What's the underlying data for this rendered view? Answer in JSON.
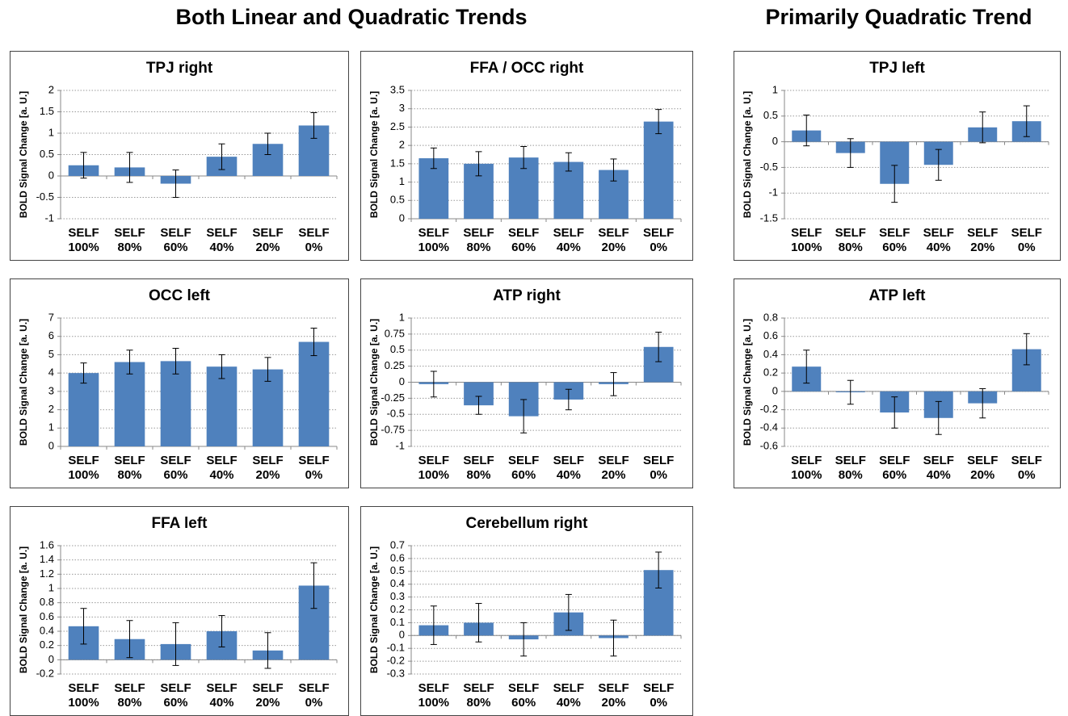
{
  "headings": [
    "Both Linear and Quadratic Trends",
    "Primarily Quadratic Trend"
  ],
  "chart_data": [
    {
      "type": "bar",
      "title": "TPJ right",
      "ylabel": "BOLD Signal Change [a. U.]",
      "categories": [
        "SELF 100%",
        "SELF 80%",
        "SELF 60%",
        "SELF 40%",
        "SELF 20%",
        "SELF 0%"
      ],
      "values": [
        0.25,
        0.2,
        -0.18,
        0.45,
        0.75,
        1.18
      ],
      "errors": [
        0.3,
        0.35,
        0.32,
        0.3,
        0.25,
        0.3
      ],
      "color": "#4f81bd",
      "ylim": [
        -1,
        2
      ],
      "yticks": [
        -1,
        -0.5,
        0,
        0.5,
        1,
        1.5,
        2
      ],
      "grid": true
    },
    {
      "type": "bar",
      "title": "FFA / OCC right",
      "ylabel": "BOLD Signal Change [a. U.]",
      "categories": [
        "SELF 100%",
        "SELF 80%",
        "SELF 60%",
        "SELF 40%",
        "SELF 20%",
        "SELF 0%"
      ],
      "values": [
        1.65,
        1.5,
        1.67,
        1.55,
        1.33,
        2.65
      ],
      "errors": [
        0.28,
        0.33,
        0.3,
        0.25,
        0.3,
        0.33
      ],
      "color": "#4f81bd",
      "ylim": [
        0,
        3.5
      ],
      "yticks": [
        0,
        0.5,
        1,
        1.5,
        2,
        2.5,
        3,
        3.5
      ],
      "grid": true
    },
    {
      "type": "bar",
      "title": "TPJ left",
      "ylabel": "BOLD Signal Change [a. U.]",
      "categories": [
        "SELF 100%",
        "SELF 80%",
        "SELF 60%",
        "SELF 40%",
        "SELF 20%",
        "SELF 0%"
      ],
      "values": [
        0.22,
        -0.22,
        -0.82,
        -0.45,
        0.28,
        0.4
      ],
      "errors": [
        0.3,
        0.28,
        0.36,
        0.3,
        0.3,
        0.3
      ],
      "color": "#4f81bd",
      "ylim": [
        -1.5,
        1
      ],
      "yticks": [
        -1.5,
        -1,
        -0.5,
        0,
        0.5,
        1
      ],
      "grid": true
    },
    {
      "type": "bar",
      "title": "OCC left",
      "ylabel": "BOLD Signal Change [a. U.]",
      "categories": [
        "SELF 100%",
        "SELF 80%",
        "SELF 60%",
        "SELF 40%",
        "SELF 20%",
        "SELF 0%"
      ],
      "values": [
        4.0,
        4.6,
        4.65,
        4.35,
        4.2,
        5.7
      ],
      "errors": [
        0.55,
        0.65,
        0.7,
        0.65,
        0.65,
        0.75
      ],
      "color": "#4f81bd",
      "ylim": [
        0,
        7
      ],
      "yticks": [
        0,
        1,
        2,
        3,
        4,
        5,
        6,
        7
      ],
      "grid": true
    },
    {
      "type": "bar",
      "title": "ATP right",
      "ylabel": "BOLD Signal Change [a. U.]",
      "categories": [
        "SELF 100%",
        "SELF 80%",
        "SELF 60%",
        "SELF 40%",
        "SELF 20%",
        "SELF 0%"
      ],
      "values": [
        -0.03,
        -0.36,
        -0.53,
        -0.27,
        -0.03,
        0.55
      ],
      "errors": [
        0.2,
        0.14,
        0.26,
        0.16,
        0.18,
        0.23
      ],
      "color": "#4f81bd",
      "ylim": [
        -1,
        1
      ],
      "yticks": [
        -1,
        -0.75,
        -0.5,
        -0.25,
        0,
        0.25,
        0.5,
        0.75,
        1
      ],
      "grid": true
    },
    {
      "type": "bar",
      "title": "ATP left",
      "ylabel": "BOLD Signal Change [a. U.]",
      "categories": [
        "SELF 100%",
        "SELF 80%",
        "SELF 60%",
        "SELF 40%",
        "SELF 20%",
        "SELF 0%"
      ],
      "values": [
        0.27,
        -0.01,
        -0.23,
        -0.29,
        -0.13,
        0.46
      ],
      "errors": [
        0.18,
        0.13,
        0.17,
        0.18,
        0.16,
        0.17
      ],
      "color": "#4f81bd",
      "ylim": [
        -0.6,
        0.8
      ],
      "yticks": [
        -0.6,
        -0.4,
        -0.2,
        0,
        0.2,
        0.4,
        0.6,
        0.8
      ],
      "grid": true
    },
    {
      "type": "bar",
      "title": "FFA left",
      "ylabel": "BOLD Signal Change [a. U.]",
      "categories": [
        "SELF 100%",
        "SELF 80%",
        "SELF 60%",
        "SELF 40%",
        "SELF 20%",
        "SELF 0%"
      ],
      "values": [
        0.47,
        0.29,
        0.22,
        0.4,
        0.13,
        1.04
      ],
      "errors": [
        0.25,
        0.26,
        0.3,
        0.22,
        0.25,
        0.32
      ],
      "color": "#4f81bd",
      "ylim": [
        -0.2,
        1.6
      ],
      "yticks": [
        -0.2,
        0,
        0.2,
        0.4,
        0.6,
        0.8,
        1,
        1.2,
        1.4,
        1.6
      ],
      "grid": true
    },
    {
      "type": "bar",
      "title": "Cerebellum right",
      "ylabel": "BOLD Signal Change [a. U.]",
      "categories": [
        "SELF 100%",
        "SELF 80%",
        "SELF 60%",
        "SELF 40%",
        "SELF 20%",
        "SELF 0%"
      ],
      "values": [
        0.08,
        0.1,
        -0.03,
        0.18,
        -0.02,
        0.51
      ],
      "errors": [
        0.15,
        0.15,
        0.13,
        0.14,
        0.14,
        0.14
      ],
      "color": "#4f81bd",
      "ylim": [
        -0.3,
        0.7
      ],
      "yticks": [
        -0.3,
        -0.2,
        -0.1,
        0,
        0.1,
        0.2,
        0.3,
        0.4,
        0.5,
        0.6,
        0.7
      ],
      "grid": true
    }
  ]
}
